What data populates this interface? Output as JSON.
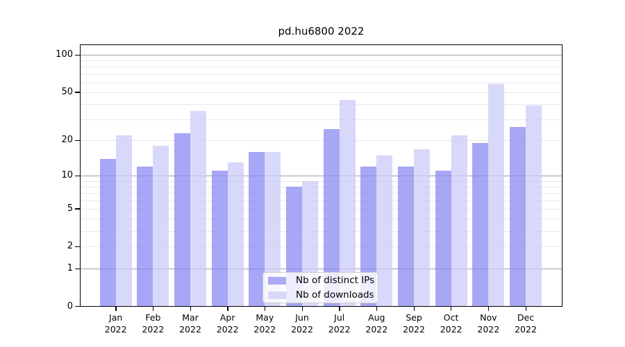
{
  "figure": {
    "title": "pd.hu6800 2022"
  },
  "chart_data": {
    "type": "bar",
    "title": "pd.hu6800 2022",
    "xlabel": "",
    "ylabel": "",
    "yscale": "log1p",
    "ylim": [
      0,
      110
    ],
    "categories": [
      "Jan",
      "Feb",
      "Mar",
      "Apr",
      "May",
      "Jun",
      "Jul",
      "Aug",
      "Sep",
      "Oct",
      "Nov",
      "Dec"
    ],
    "category_year": "2022",
    "series": [
      {
        "name": "Nb of distinct IPs",
        "color_on_white": "#aaaaf5",
        "color_base": "#8a8af2",
        "values": [
          14,
          12,
          23,
          11,
          16,
          8,
          25,
          12,
          12,
          11,
          19,
          26
        ]
      },
      {
        "name": "Nb of downloads",
        "color_on_white": "#d8d8fa",
        "color_base": "#cbcbf8",
        "values": [
          22,
          18,
          35,
          13,
          16,
          9,
          43,
          15,
          17,
          22,
          58,
          39
        ]
      }
    ],
    "bar_alpha": 0.75,
    "yticks": [
      100,
      50,
      20,
      10,
      5,
      2,
      1,
      0
    ],
    "major_gridlines": [
      100,
      10,
      1
    ],
    "minor_gridlines": [
      90,
      80,
      70,
      60,
      50,
      40,
      30,
      20,
      9,
      8,
      7,
      6,
      5,
      4,
      3,
      2
    ],
    "grid": true,
    "legend_position": "lower-center",
    "colors": {
      "major_grid": "#a0a0a0",
      "minor_grid": "#e8e8e8",
      "axis": "#000000"
    }
  }
}
